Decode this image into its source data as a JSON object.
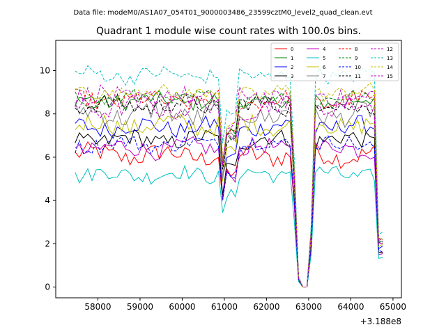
{
  "chart_data": {
    "type": "line",
    "suptitle": "Data file: modeM0/AS1A07_054T01_9000003486_23599cztM0_level2_quad_clean.evt",
    "title": "Quadrant 1 module wise count rates with 100.0s bins.",
    "xlabel": "",
    "ylabel": "",
    "x_offset_label": "+3.188e8",
    "xlim": [
      57000,
      65200
    ],
    "ylim": [
      -0.5,
      11.4
    ],
    "xticks": [
      58000,
      59000,
      60000,
      61000,
      62000,
      63000,
      64000,
      65000
    ],
    "yticks": [
      0,
      2,
      4,
      6,
      8,
      10
    ],
    "x_start": 57460,
    "x_step": 100,
    "dip_segments": [
      {
        "from": 60900,
        "to": 61300,
        "factors": [
          0.85,
          0.65,
          0.82
        ]
      },
      {
        "from": 62600,
        "to": 63200,
        "factors": [
          0.97,
          0.6,
          0.05,
          0.0,
          0.0,
          0.3,
          1.0
        ]
      },
      {
        "from": 64600,
        "to": 64800,
        "factors": [
          0.8,
          0.25
        ]
      }
    ],
    "series": [
      {
        "name": "0",
        "color": "#ff0000",
        "dash": "solid",
        "mean": 6.1,
        "amplitude": 0.45
      },
      {
        "name": "1",
        "color": "#008000",
        "dash": "solid",
        "mean": 8.6,
        "amplitude": 0.35
      },
      {
        "name": "2",
        "color": "#0000ff",
        "dash": "solid",
        "mean": 7.4,
        "amplitude": 0.4
      },
      {
        "name": "3",
        "color": "#000000",
        "dash": "solid",
        "mean": 6.8,
        "amplitude": 0.4
      },
      {
        "name": "4",
        "color": "#c000c0",
        "dash": "solid",
        "mean": 6.4,
        "amplitude": 0.4
      },
      {
        "name": "5",
        "color": "#00c0c0",
        "dash": "solid",
        "mean": 5.2,
        "amplitude": 0.35
      },
      {
        "name": "6",
        "color": "#c0c000",
        "dash": "solid",
        "mean": 7.5,
        "amplitude": 0.45
      },
      {
        "name": "7",
        "color": "#808080",
        "dash": "solid",
        "mean": 8.0,
        "amplitude": 0.5
      },
      {
        "name": "8",
        "color": "#ff0000",
        "dash": "dashed",
        "mean": 8.6,
        "amplitude": 0.4
      },
      {
        "name": "9",
        "color": "#008000",
        "dash": "dashed",
        "mean": 8.7,
        "amplitude": 0.35
      },
      {
        "name": "10",
        "color": "#0000ff",
        "dash": "dashed",
        "mean": 6.6,
        "amplitude": 0.35
      },
      {
        "name": "11",
        "color": "#000000",
        "dash": "dashed",
        "mean": 8.4,
        "amplitude": 0.4
      },
      {
        "name": "12",
        "color": "#c000c0",
        "dash": "dashed",
        "mean": 8.8,
        "amplitude": 0.45
      },
      {
        "name": "13",
        "color": "#00c0c0",
        "dash": "dashed",
        "mean": 9.8,
        "amplitude": 0.35
      },
      {
        "name": "14",
        "color": "#c0c000",
        "dash": "dashed",
        "mean": 9.0,
        "amplitude": 0.35
      },
      {
        "name": "15",
        "color": "#c000c0",
        "dash": "dashed",
        "mean": 8.3,
        "amplitude": 0.45
      }
    ]
  }
}
